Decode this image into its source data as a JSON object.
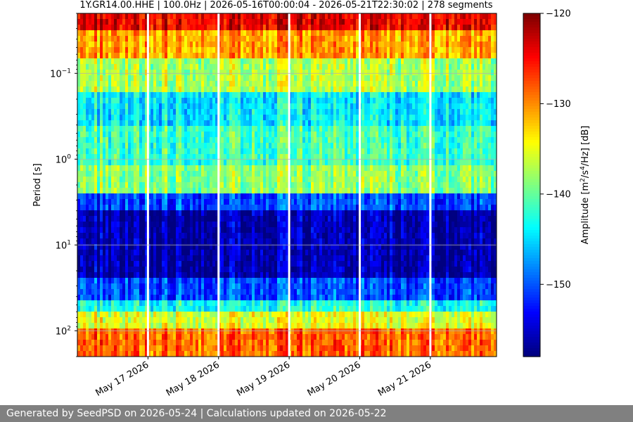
{
  "chart_data": {
    "type": "heatmap",
    "title": "1Y.GR14.00.HHE | 100.0Hz | 2026-05-16T00:00:04 - 2026-05-21T22:30:02 | 278 segments",
    "ylabel": "Period [s]",
    "colorbar_label_main": "Amplitude [m",
    "colorbar_label_unit": "/s",
    "colorbar_label_tail": "/Hz] [dB]",
    "colorbar_sup_1": "2",
    "colorbar_sup_2": "4",
    "colorbar_colormap": "jet",
    "colorbar_range_db": [
      -158,
      -120
    ],
    "colorbar_ticks": [
      -120,
      -130,
      -140,
      -150
    ],
    "colorbar_ticklabels": [
      "−120",
      "−130",
      "−140",
      "−150"
    ],
    "y_scale": "log",
    "y_inverted": true,
    "y_range_s": [
      0.02,
      200
    ],
    "y_ticks": [
      {
        "value": 0.1,
        "base": "10",
        "exp": "−1"
      },
      {
        "value": 1,
        "base": "10",
        "exp": "0"
      },
      {
        "value": 10,
        "base": "10",
        "exp": "1"
      },
      {
        "value": 100,
        "base": "10",
        "exp": "2"
      }
    ],
    "x_range_days": [
      "2026-05-16T00:00:04",
      "2026-05-21T22:30:02"
    ],
    "x_ticks": [
      {
        "date": "2026-05-17",
        "label": "May 17 2026"
      },
      {
        "date": "2026-05-18",
        "label": "May 18 2026"
      },
      {
        "date": "2026-05-19",
        "label": "May 19 2026"
      },
      {
        "date": "2026-05-20",
        "label": "May 20 2026"
      },
      {
        "date": "2026-05-21",
        "label": "May 21 2026"
      }
    ],
    "data_gaps_at": [
      "2026-05-17",
      "2026-05-18",
      "2026-05-19",
      "2026-05-20",
      "2026-05-21"
    ],
    "grid": "horizontal"
  },
  "footer": {
    "text": "Generated by SeedPSD on 2026-05-24 | Calculations updated on 2026-05-22"
  }
}
